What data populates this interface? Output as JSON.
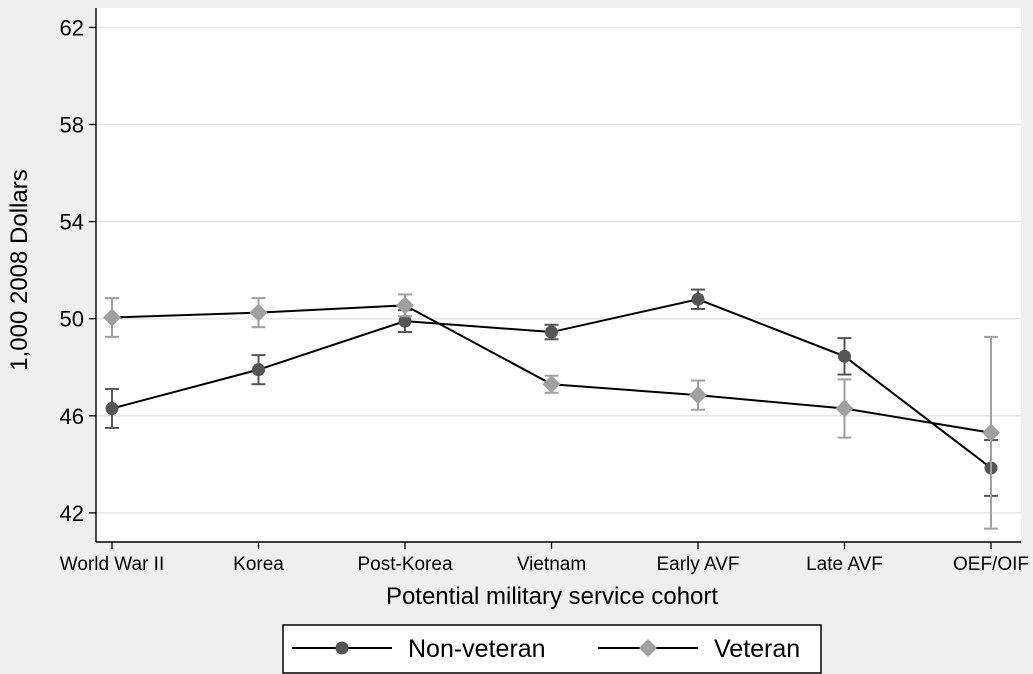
{
  "chart_data": {
    "type": "line",
    "title": "",
    "xlabel": "Potential military service cohort",
    "ylabel": "1,000 2008 Dollars",
    "categories": [
      "World War II",
      "Korea",
      "Post-Korea",
      "Vietnam",
      "Early AVF",
      "Late AVF",
      "OEF/OIF"
    ],
    "yticks": [
      42,
      46,
      50,
      54,
      58,
      62
    ],
    "ylim": [
      40.8,
      62.8
    ],
    "grid": true,
    "legend_position": "bottom",
    "series": [
      {
        "name": "Non-veteran",
        "marker": "circle",
        "color": "#555555",
        "values": [
          46.3,
          47.9,
          49.9,
          49.45,
          50.8,
          48.45,
          43.85
        ],
        "ci_low": [
          45.5,
          47.3,
          49.45,
          49.15,
          50.4,
          47.7,
          42.7
        ],
        "ci_high": [
          47.1,
          48.5,
          50.35,
          49.75,
          51.2,
          49.2,
          45.0
        ]
      },
      {
        "name": "Veteran",
        "marker": "diamond",
        "color": "#a0a0a0",
        "values": [
          50.05,
          50.25,
          50.55,
          47.3,
          46.85,
          46.3,
          45.3
        ],
        "ci_low": [
          49.25,
          49.65,
          50.1,
          46.95,
          46.25,
          45.1,
          41.35
        ],
        "ci_high": [
          50.85,
          50.85,
          51.0,
          47.65,
          47.45,
          47.5,
          49.25
        ]
      }
    ]
  }
}
